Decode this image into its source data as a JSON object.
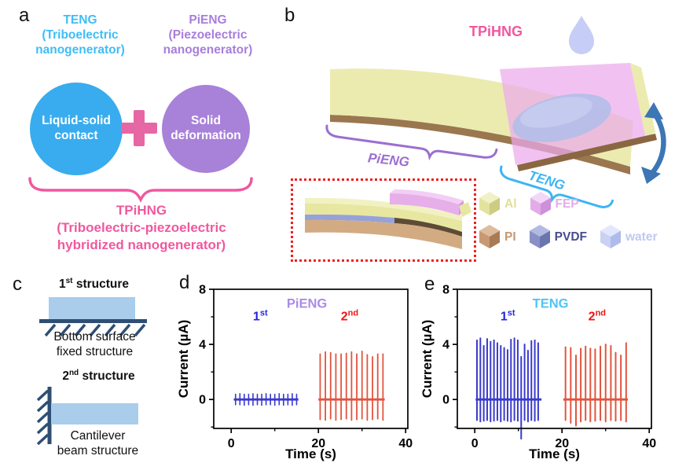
{
  "figure": {
    "panels": {
      "a": {
        "label": "a",
        "teng_title": "TENG\n(Triboelectric\nnanogenerator)",
        "pieng_title": "PiENG\n(Piezoelectric\nnanogenerator)",
        "circle_left": "Liquid-solid\ncontact",
        "circle_right": "Solid\ndeformation",
        "hybrid_title": "TPiHNG\n(Triboelectric-piezoelectric\nhybridized nanogenerator)",
        "colors": {
          "teng_blue": "#3FBDF6",
          "circle_blue": "#38ACEE",
          "pieng_purple": "#A87EDC",
          "circle_purple": "#A881D9",
          "plus_pink": "#E766A4",
          "hybrid_pink": "#F0589E"
        }
      },
      "b": {
        "label": "b",
        "title": "TPiHNG",
        "pieng_brace_label": "PiENG",
        "teng_brace_label": "TENG",
        "legend_rows": [
          [
            {
              "label": "Al",
              "top": "#F1F1C6",
              "front": "#E3E3A0",
              "side": "#CCCC83",
              "label_color": "#DFDF96"
            },
            {
              "label": "FEP",
              "top": "#F4D7F6",
              "front": "#E2ACE8",
              "side": "#CE90DA",
              "label_color": "#E2ACE8"
            }
          ],
          [
            {
              "label": "PI",
              "top": "#DDBC9E",
              "front": "#C69873",
              "side": "#A87A55",
              "label_color": "#C69873"
            },
            {
              "label": "PVDF",
              "top": "#B2B9E2",
              "front": "#8890C6",
              "side": "#6C74AC",
              "label_color": "#474C8F"
            },
            {
              "label": "water",
              "top": "#E2E7FB",
              "front": "#C9D2F3",
              "side": "#AFBBEB",
              "label_color": "#BFC9F1"
            }
          ]
        ],
        "colors": {
          "title_pink": "#F0589E",
          "al_yellow": "#E9E9A7",
          "fep_pink": "#ECABEC",
          "pi_brown": "#9A774F",
          "pvdf_blue": "#97A1D9",
          "water_lavender": "#C6CEF7",
          "arrow_blue": "#3C76B5",
          "box_red": "#EE2020",
          "pieng_purple": "#9B6FD0",
          "teng_blue": "#3DB5F2"
        }
      },
      "c": {
        "label": "c",
        "s1_title": {
          "num": "1",
          "sup": "st",
          "rest": " structure"
        },
        "s1_caption": "Bottom surface\nfixed structure",
        "s2_title": {
          "num": "2",
          "sup": "nd",
          "rest": " structure"
        },
        "s2_caption": "Cantilever\nbeam structure",
        "colors": {
          "beam_fill": "#A9CDEB",
          "support_navy": "#2E4E74"
        }
      }
    }
  },
  "chart_data": [
    {
      "id": "d",
      "panel_label": "d",
      "type": "line",
      "title": "PiENG",
      "title_color": "#A98BE8",
      "xlabel": "Time (s)",
      "ylabel": "Current (µA)",
      "xlim": [
        -4,
        40.5
      ],
      "ylim": [
        -2.1,
        8
      ],
      "grid": false,
      "xticks": [
        {
          "v": 0,
          "label": "0"
        },
        {
          "v": 20,
          "label": "20"
        },
        {
          "v": 40,
          "label": "40"
        }
      ],
      "yticks": [
        {
          "v": 0,
          "label": "0"
        },
        {
          "v": 4,
          "label": "4"
        },
        {
          "v": 8,
          "label": "8"
        }
      ],
      "xminor": [
        10,
        30
      ],
      "yminor": [
        -2,
        2,
        6
      ],
      "title_pos": [
        0.48,
        0.1
      ],
      "legend": [
        {
          "base": "1",
          "sup": "st",
          "color": "#2525E0",
          "pos": [
            0.24,
            0.19
          ]
        },
        {
          "base": "2",
          "sup": "nd",
          "color": "#F01414",
          "pos": [
            0.7,
            0.19
          ]
        }
      ],
      "series": [
        {
          "name": "1st",
          "color": "#3A3ACC",
          "width": 1.6,
          "baseline": [
            0.6,
            15.4
          ],
          "spikes": [
            [
              1,
              0.38,
              -0.38
            ],
            [
              2,
              0.42,
              -0.38
            ],
            [
              3,
              0.38,
              -0.42
            ],
            [
              4,
              0.38,
              -0.38
            ],
            [
              5,
              0.42,
              -0.42
            ],
            [
              6,
              0.38,
              -0.38
            ],
            [
              7,
              0.38,
              -0.42
            ],
            [
              8,
              0.42,
              -0.38
            ],
            [
              9,
              0.38,
              -0.38
            ],
            [
              10,
              0.38,
              -0.42
            ],
            [
              11,
              0.42,
              -0.38
            ],
            [
              12,
              0.38,
              -0.42
            ],
            [
              13,
              0.38,
              -0.38
            ],
            [
              14,
              0.42,
              -0.42
            ],
            [
              15,
              0.38,
              -0.38
            ]
          ]
        },
        {
          "name": "2nd",
          "color": "#E2543E",
          "width": 1.8,
          "baseline": [
            20.0,
            35.2
          ],
          "spikes": [
            [
              20.4,
              3.3,
              -1.45
            ],
            [
              21.6,
              3.45,
              -1.5
            ],
            [
              22.8,
              3.4,
              -1.4
            ],
            [
              24.0,
              3.3,
              -1.5
            ],
            [
              25.2,
              3.3,
              -1.45
            ],
            [
              26.4,
              3.35,
              -1.4
            ],
            [
              27.6,
              3.45,
              -1.5
            ],
            [
              28.8,
              3.3,
              -1.45
            ],
            [
              30.0,
              3.5,
              -1.4
            ],
            [
              31.2,
              3.25,
              -1.5
            ],
            [
              32.4,
              3.1,
              -1.45
            ],
            [
              33.6,
              3.3,
              -1.4
            ],
            [
              34.8,
              3.3,
              -1.5
            ]
          ]
        }
      ]
    },
    {
      "id": "e",
      "panel_label": "e",
      "type": "line",
      "title": "TENG",
      "title_color": "#4FC4F6",
      "xlabel": "Time (s)",
      "ylabel": "Current (µA)",
      "xlim": [
        -4,
        40.5
      ],
      "ylim": [
        -2.1,
        8
      ],
      "grid": false,
      "xticks": [
        {
          "v": 0,
          "label": "0"
        },
        {
          "v": 20,
          "label": "20"
        },
        {
          "v": 40,
          "label": "40"
        }
      ],
      "yticks": [
        {
          "v": 0,
          "label": "0"
        },
        {
          "v": 4,
          "label": "4"
        },
        {
          "v": 8,
          "label": "8"
        }
      ],
      "xminor": [
        10,
        30
      ],
      "yminor": [
        -2,
        2,
        6
      ],
      "title_pos": [
        0.48,
        0.1
      ],
      "legend": [
        {
          "base": "1",
          "sup": "st",
          "color": "#2525E0",
          "pos": [
            0.26,
            0.19
          ]
        },
        {
          "base": "2",
          "sup": "nd",
          "color": "#F01414",
          "pos": [
            0.72,
            0.19
          ]
        }
      ],
      "series": [
        {
          "name": "1st",
          "color": "#3A3ACC",
          "width": 2.0,
          "baseline": [
            0.2,
            15.3
          ],
          "spikes": [
            [
              0.5,
              4.3,
              -1.5
            ],
            [
              1.28,
              4.45,
              -1.6
            ],
            [
              2.06,
              3.9,
              -1.55
            ],
            [
              2.84,
              4.4,
              -1.5
            ],
            [
              3.62,
              4.2,
              -1.6
            ],
            [
              4.4,
              4.3,
              -1.55
            ],
            [
              5.18,
              4.1,
              -1.5
            ],
            [
              5.96,
              3.9,
              -1.6
            ],
            [
              6.74,
              3.75,
              -1.5
            ],
            [
              7.52,
              3.6,
              -1.55
            ],
            [
              8.3,
              4.35,
              -1.6
            ],
            [
              9.08,
              4.45,
              -1.5
            ],
            [
              9.86,
              4.3,
              -1.55
            ],
            [
              10.64,
              3.1,
              -2.85
            ],
            [
              11.42,
              4.0,
              -1.5
            ],
            [
              12.2,
              3.55,
              -1.6
            ],
            [
              12.98,
              4.25,
              -1.5
            ],
            [
              13.76,
              4.3,
              -1.55
            ],
            [
              14.54,
              4.1,
              -1.5
            ]
          ]
        },
        {
          "name": "2nd",
          "color": "#E2543E",
          "width": 2.0,
          "baseline": [
            20.3,
            35.1
          ],
          "spikes": [
            [
              20.8,
              3.8,
              -1.5
            ],
            [
              22.0,
              3.75,
              -1.7
            ],
            [
              23.2,
              3.2,
              -1.9
            ],
            [
              24.3,
              3.7,
              -1.6
            ],
            [
              25.4,
              3.85,
              -1.5
            ],
            [
              26.5,
              3.7,
              -1.6
            ],
            [
              27.6,
              3.65,
              -1.55
            ],
            [
              28.8,
              3.85,
              -1.5
            ],
            [
              30.0,
              4.0,
              -1.6
            ],
            [
              31.2,
              3.9,
              -1.5
            ],
            [
              32.3,
              3.4,
              -1.55
            ],
            [
              33.5,
              3.2,
              -1.5
            ],
            [
              34.7,
              4.1,
              -1.6
            ]
          ]
        }
      ]
    }
  ]
}
